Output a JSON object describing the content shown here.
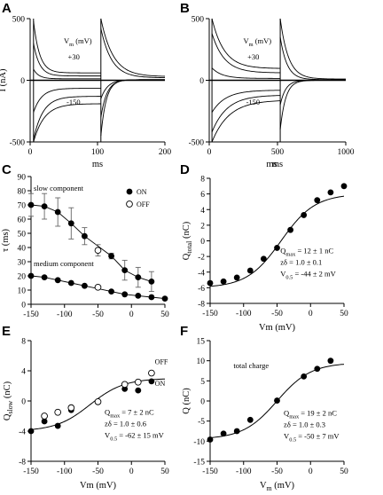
{
  "chart_data": [
    {
      "panel": "A",
      "type": "line",
      "title": "",
      "xlabel": "ms",
      "ylabel": "I (nA)",
      "xlim": [
        0,
        200
      ],
      "ylim": [
        -500,
        500
      ],
      "xticks": [
        "0",
        "100",
        "200"
      ],
      "yticks": [
        "500",
        "0",
        "-500"
      ],
      "annotations": [
        "V_m (mV)",
        "+30",
        "-150"
      ],
      "traces_ON": [
        {
          "name": "+30",
          "steady": 60,
          "peak": 480,
          "tau": 9
        },
        {
          "name": "",
          "steady": 35,
          "peak": 300,
          "tau": 9
        },
        {
          "name": "",
          "steady": 12,
          "peak": 90,
          "tau": 8
        },
        {
          "name": "",
          "steady": -65,
          "peak": -260,
          "tau": 12
        },
        {
          "name": "",
          "steady": -130,
          "peak": -480,
          "tau": 14
        },
        {
          "name": "-150",
          "steady": -190,
          "peak": -500,
          "tau": 16
        }
      ],
      "traces_OFF": [
        {
          "name": "",
          "steady": 30,
          "peak": 500,
          "tau": 18
        },
        {
          "name": "",
          "steady": 20,
          "peak": 420,
          "tau": 16
        },
        {
          "name": "",
          "steady": 5,
          "peak": -150,
          "tau": 10
        },
        {
          "name": "",
          "steady": 5,
          "peak": -300,
          "tau": 9
        },
        {
          "name": "",
          "steady": 5,
          "peak": -450,
          "tau": 8
        }
      ],
      "step_on_ms": 5,
      "step_off_ms": 105
    },
    {
      "panel": "B",
      "type": "line",
      "title": "",
      "xlabel": "ms",
      "ylabel": "",
      "xlim": [
        0,
        1000
      ],
      "ylim": [
        -500,
        500
      ],
      "xticks": [
        "0",
        "500",
        "1000"
      ],
      "yticks": [
        "500",
        "0",
        "-500"
      ],
      "annotations": [
        "V_m (mV)",
        "+30",
        "-150"
      ],
      "traces_ON": [
        {
          "name": "+30",
          "steady": 95,
          "peak": 500,
          "tau": 18
        },
        {
          "name": "",
          "steady": 60,
          "peak": 380,
          "tau": 18
        },
        {
          "name": "",
          "steady": 15,
          "peak": 100,
          "tau": 15
        },
        {
          "name": "",
          "steady": -80,
          "peak": -260,
          "tau": 20
        },
        {
          "name": "",
          "steady": -120,
          "peak": -420,
          "tau": 22
        },
        {
          "name": "-150",
          "steady": -160,
          "peak": -500,
          "tau": 25
        }
      ],
      "traces_OFF": [
        {
          "name": "",
          "steady": 10,
          "peak": 500,
          "tau": 12
        },
        {
          "name": "",
          "steady": 5,
          "peak": 350,
          "tau": 10
        },
        {
          "name": "",
          "steady": 0,
          "peak": -200,
          "tau": 8
        },
        {
          "name": "",
          "steady": 0,
          "peak": -400,
          "tau": 8
        }
      ],
      "step_on_ms": 20,
      "step_off_ms": 520
    },
    {
      "panel": "C",
      "type": "scatter",
      "title": "",
      "xlabel": "",
      "ylabel": "τ (ms)",
      "xlim": [
        -150,
        50
      ],
      "ylim": [
        0,
        90
      ],
      "xticks": [
        "-150",
        "-100",
        "-50",
        "0",
        "50"
      ],
      "yticks": [
        "0",
        "10",
        "20",
        "30",
        "40",
        "50",
        "60",
        "70",
        "80",
        "90"
      ],
      "annotations": [
        "slow component",
        "medium component"
      ],
      "legend": {
        "entries": [
          "ON",
          "OFF"
        ],
        "position": "top-right"
      },
      "series": [
        {
          "name": "ON",
          "marker": "filled",
          "points": [
            {
              "x": -150,
              "y": 70,
              "err": 8
            },
            {
              "x": -130,
              "y": 69,
              "err": 9
            },
            {
              "x": -110,
              "y": 65,
              "err": 10
            },
            {
              "x": -90,
              "y": 57,
              "err": 11
            },
            {
              "x": -70,
              "y": 48,
              "err": 6
            },
            {
              "x": -30,
              "y": 34,
              "err": 2
            },
            {
              "x": -10,
              "y": 24,
              "err": 7
            },
            {
              "x": 10,
              "y": 19,
              "err": 7
            },
            {
              "x": 30,
              "y": 16,
              "err": 7
            }
          ]
        },
        {
          "name": "ON",
          "marker": "filled",
          "points": [
            {
              "x": -150,
              "y": 20
            },
            {
              "x": -130,
              "y": 19
            },
            {
              "x": -110,
              "y": 17
            },
            {
              "x": -90,
              "y": 15
            },
            {
              "x": -70,
              "y": 13
            },
            {
              "x": -30,
              "y": 9
            },
            {
              "x": -10,
              "y": 7
            },
            {
              "x": 10,
              "y": 6
            },
            {
              "x": 30,
              "y": 5
            },
            {
              "x": 50,
              "y": 4
            }
          ]
        },
        {
          "name": "OFF",
          "marker": "open",
          "points": [
            {
              "x": -50,
              "y": 38,
              "err": 4
            },
            {
              "x": -50,
              "y": 12
            }
          ]
        }
      ]
    },
    {
      "panel": "D",
      "type": "scatter",
      "title": "",
      "xlabel": "Vm (mV)",
      "xlabel_top": "ms",
      "ylabel": "Q_total (nC)",
      "xlim": [
        -150,
        50
      ],
      "ylim": [
        -8,
        8
      ],
      "xticks": [
        "-150",
        "-100",
        "-50",
        "0",
        "50"
      ],
      "yticks": [
        "-8",
        "-6",
        "-4",
        "-2",
        "0",
        "2",
        "4",
        "6",
        "8"
      ],
      "fit_text": [
        "Q_max = 12 ± 1 nC",
        "zδ = 1.0 ± 0.1",
        "V_0.5 = -44 ± 2 mV"
      ],
      "fit": {
        "qmax": 12,
        "z": 1.0,
        "v05": -44,
        "offset": -6
      },
      "series": [
        {
          "name": "",
          "marker": "filled",
          "points": [
            {
              "x": -150,
              "y": -5.4
            },
            {
              "x": -130,
              "y": -5.2
            },
            {
              "x": -110,
              "y": -4.7
            },
            {
              "x": -90,
              "y": -3.8
            },
            {
              "x": -70,
              "y": -2.3
            },
            {
              "x": -50,
              "y": -0.9
            },
            {
              "x": -30,
              "y": 1.4
            },
            {
              "x": -10,
              "y": 3.3
            },
            {
              "x": 10,
              "y": 5.2
            },
            {
              "x": 30,
              "y": 6.2
            },
            {
              "x": 50,
              "y": 7.0
            }
          ]
        }
      ]
    },
    {
      "panel": "E",
      "type": "scatter",
      "title": "",
      "xlabel": "Vm (mV)",
      "ylabel": "Q_slow (nC)",
      "xlim": [
        -150,
        50
      ],
      "ylim": [
        -8,
        8
      ],
      "xticks": [
        "-150",
        "-100",
        "-50",
        "0",
        "50"
      ],
      "yticks": [
        "-8",
        "-4",
        "0",
        "4",
        "8"
      ],
      "fit_text": [
        "Q_max = 7 ± 2 nC",
        "zδ = 1.0 ± 0.6",
        "V_0.5 = -62 ± 15 mV"
      ],
      "fit": {
        "qmax": 7,
        "z": 1.0,
        "v05": -62,
        "offset": -4
      },
      "legend": {
        "entries": [
          "OFF",
          "ON"
        ],
        "position": "right"
      },
      "series": [
        {
          "name": "ON",
          "marker": "filled",
          "points": [
            {
              "x": -150,
              "y": -4.0
            },
            {
              "x": -130,
              "y": -2.7
            },
            {
              "x": -110,
              "y": -3.3
            },
            {
              "x": -90,
              "y": -1.2
            },
            {
              "x": -10,
              "y": 1.6
            },
            {
              "x": 10,
              "y": 1.4
            },
            {
              "x": 30,
              "y": 2.6
            }
          ]
        },
        {
          "name": "OFF",
          "marker": "open",
          "points": [
            {
              "x": -130,
              "y": -2.0
            },
            {
              "x": -110,
              "y": -1.5
            },
            {
              "x": -90,
              "y": -0.9
            },
            {
              "x": -50,
              "y": -0.1
            },
            {
              "x": -10,
              "y": 2.2
            },
            {
              "x": 10,
              "y": 2.5
            },
            {
              "x": 30,
              "y": 3.7
            }
          ]
        }
      ]
    },
    {
      "panel": "F",
      "type": "scatter",
      "title": "",
      "xlabel": "V_m (mV)",
      "ylabel": "Q (nC)",
      "xlim": [
        -150,
        50
      ],
      "ylim": [
        -15,
        15
      ],
      "xticks": [
        "-150",
        "-100",
        "-50",
        "0",
        "50"
      ],
      "yticks": [
        "-15",
        "-10",
        "-5",
        "0",
        "5",
        "10",
        "15"
      ],
      "annotations": [
        "total charge"
      ],
      "fit_text": [
        "Q_max = 19 ± 2 nC",
        "zδ = 1.0 ± 0.3",
        "V_0.5 = -50 ± 7 mV"
      ],
      "fit": {
        "qmax": 19,
        "z": 1.0,
        "v05": -50,
        "offset": -9.5
      },
      "series": [
        {
          "name": "",
          "marker": "filled",
          "points": [
            {
              "x": -150,
              "y": -9.6
            },
            {
              "x": -130,
              "y": -8.1
            },
            {
              "x": -110,
              "y": -7.5
            },
            {
              "x": -90,
              "y": -4.7
            },
            {
              "x": -50,
              "y": 0.1
            },
            {
              "x": -10,
              "y": 6.1
            },
            {
              "x": 10,
              "y": 8.0
            },
            {
              "x": 30,
              "y": 10.0
            }
          ]
        }
      ]
    }
  ]
}
